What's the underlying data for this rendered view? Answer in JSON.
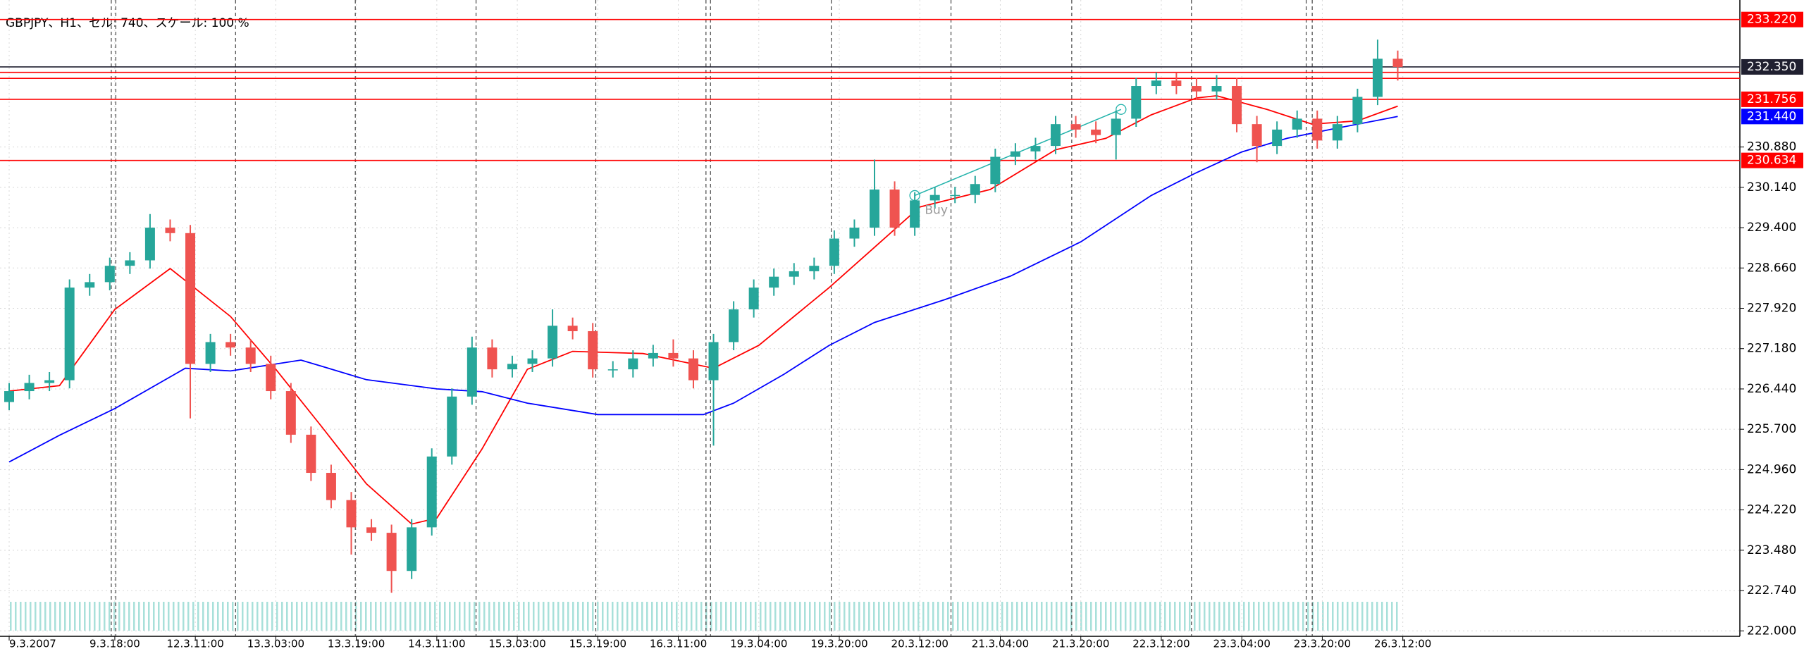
{
  "chart_data": {
    "type": "candlestick",
    "title": "GBPJPY、H1、セル: 740、スケール: 100 %",
    "x": [
      0,
      4,
      8,
      12,
      16,
      20,
      24,
      28,
      32,
      36,
      40,
      44,
      48,
      52,
      56,
      60,
      64,
      68,
      72,
      76,
      80,
      84,
      88,
      92,
      96,
      100,
      104,
      108,
      112,
      116,
      120,
      124,
      128,
      132,
      136,
      140,
      144,
      148,
      152,
      156,
      160,
      164,
      168,
      172,
      176,
      180,
      184,
      188,
      192,
      196,
      200,
      204,
      208,
      212,
      216,
      220,
      224,
      228,
      232,
      236,
      240,
      244,
      248,
      252,
      256,
      260,
      264,
      268,
      272,
      276
    ],
    "open": [
      226.2,
      226.4,
      226.55,
      226.6,
      228.3,
      228.4,
      228.7,
      228.8,
      229.4,
      229.3,
      226.9,
      227.3,
      227.2,
      226.9,
      226.4,
      225.6,
      224.9,
      224.4,
      223.9,
      223.8,
      223.1,
      223.9,
      225.2,
      226.3,
      227.2,
      226.8,
      226.9,
      227.0,
      227.6,
      227.5,
      226.8,
      226.8,
      227.0,
      227.1,
      227.0,
      226.6,
      227.3,
      227.9,
      228.3,
      228.5,
      228.6,
      228.7,
      229.2,
      229.4,
      230.1,
      229.4,
      229.9,
      230.0,
      230.0,
      230.2,
      230.7,
      230.8,
      230.9,
      231.3,
      231.2,
      231.1,
      231.4,
      232.0,
      232.1,
      232.0,
      231.9,
      232.0,
      231.3,
      230.9,
      231.2,
      231.4,
      231.0,
      231.3,
      231.8,
      232.5
    ],
    "high": [
      226.55,
      226.7,
      226.75,
      228.45,
      228.55,
      228.85,
      228.95,
      229.65,
      229.55,
      229.45,
      227.45,
      227.45,
      227.35,
      227.05,
      226.55,
      225.75,
      225.05,
      224.55,
      224.05,
      223.95,
      224.05,
      225.35,
      226.45,
      227.4,
      227.35,
      227.05,
      227.15,
      227.9,
      227.75,
      227.65,
      226.95,
      227.15,
      227.25,
      227.35,
      227.15,
      227.45,
      228.05,
      228.45,
      228.65,
      228.75,
      228.85,
      229.35,
      229.55,
      230.65,
      230.25,
      230.05,
      230.15,
      230.15,
      230.35,
      230.85,
      230.95,
      231.05,
      231.45,
      231.45,
      231.35,
      231.55,
      232.15,
      232.25,
      232.25,
      232.15,
      232.2,
      232.15,
      231.45,
      231.35,
      231.55,
      231.55,
      231.45,
      231.95,
      232.85,
      232.65
    ],
    "low": [
      226.05,
      226.25,
      226.4,
      226.45,
      228.15,
      228.25,
      228.55,
      228.65,
      229.15,
      225.9,
      226.75,
      227.05,
      226.75,
      226.25,
      225.45,
      224.75,
      224.25,
      223.4,
      223.65,
      222.7,
      222.95,
      223.75,
      225.05,
      226.15,
      226.65,
      226.65,
      226.75,
      226.85,
      227.35,
      226.65,
      226.65,
      226.65,
      226.85,
      226.85,
      226.45,
      225.4,
      227.15,
      227.75,
      228.15,
      228.35,
      228.45,
      228.55,
      229.05,
      229.25,
      229.25,
      229.25,
      229.75,
      229.85,
      229.85,
      230.05,
      230.55,
      230.65,
      230.75,
      231.05,
      230.95,
      230.65,
      231.25,
      231.85,
      231.85,
      231.75,
      231.75,
      231.15,
      230.6,
      230.75,
      231.05,
      230.85,
      230.85,
      231.15,
      231.65,
      232.1
    ],
    "close": [
      226.4,
      226.55,
      226.6,
      228.3,
      228.4,
      228.7,
      228.8,
      229.4,
      229.3,
      226.9,
      227.3,
      227.2,
      226.9,
      226.4,
      225.6,
      224.9,
      224.4,
      223.9,
      223.8,
      223.1,
      223.9,
      225.2,
      226.3,
      227.2,
      226.8,
      226.9,
      227.0,
      227.6,
      227.5,
      226.8,
      226.8,
      227.0,
      227.1,
      227.0,
      226.6,
      227.3,
      227.9,
      228.3,
      228.5,
      228.6,
      228.7,
      229.2,
      229.4,
      230.1,
      229.4,
      229.9,
      230.0,
      230.0,
      230.2,
      230.7,
      230.8,
      230.9,
      231.3,
      231.2,
      231.1,
      231.4,
      232.0,
      232.1,
      232.0,
      231.9,
      232.0,
      231.3,
      230.9,
      231.2,
      231.4,
      231.0,
      231.3,
      231.8,
      232.5,
      232.35
    ],
    "up_color": "#26a69a",
    "down_color": "#ef5350",
    "overlays": [
      {
        "color": "#ff0000",
        "x": [
          0,
          10,
          21,
          32,
          44,
          53,
          62,
          71,
          80,
          85,
          94,
          103,
          112,
          126,
          140,
          149,
          163,
          172,
          181,
          195,
          208,
          218,
          227,
          236,
          240,
          250,
          259,
          268,
          276
        ],
        "values": [
          226.4,
          226.5,
          227.9,
          228.65,
          227.77,
          226.8,
          225.76,
          224.7,
          223.96,
          224.07,
          225.34,
          226.8,
          227.13,
          227.09,
          226.82,
          227.24,
          228.3,
          229.04,
          229.78,
          230.1,
          230.83,
          231.04,
          231.47,
          231.78,
          231.82,
          231.57,
          231.3,
          231.36,
          231.63
        ]
      },
      {
        "color": "#0000ff",
        "x": [
          0,
          10,
          21,
          35,
          44,
          58,
          62,
          71,
          85,
          94,
          103,
          117,
          126,
          138,
          144,
          154,
          163,
          172,
          186,
          199,
          213,
          227,
          236,
          245,
          254,
          263,
          276
        ],
        "values": [
          225.1,
          225.59,
          226.08,
          226.82,
          226.77,
          226.97,
          226.86,
          226.61,
          226.44,
          226.39,
          226.18,
          225.97,
          225.97,
          225.97,
          226.18,
          226.71,
          227.24,
          227.66,
          228.08,
          228.51,
          229.14,
          229.99,
          230.41,
          230.79,
          231.04,
          231.21,
          231.44
        ]
      }
    ],
    "trendline": {
      "color": "#20b2aa",
      "x": [
        180,
        221
      ],
      "values": [
        229.99,
        231.57
      ]
    },
    "annotations": [
      {
        "text": "Buy",
        "x": 182,
        "y": 229.72
      }
    ],
    "hlines": [
      {
        "value": 233.22,
        "color": "#ff0000",
        "label": "233.220"
      },
      {
        "value": 232.35,
        "color": "#202030",
        "label": "232.350"
      },
      {
        "value": 232.25,
        "color": "#ff0000"
      },
      {
        "value": 232.14,
        "color": "#ff0000"
      },
      {
        "value": 231.756,
        "color": "#ff0000",
        "label": "231.756"
      },
      {
        "value": 230.634,
        "color": "#ff0000",
        "label": "230.634"
      }
    ],
    "price_labels": [
      {
        "value": 231.44,
        "color": "#0000ff",
        "label": "231.440"
      }
    ],
    "vlines": [
      20.3,
      21.2,
      45,
      68.8,
      92.8,
      116.6,
      138.5,
      139.4,
      163.4,
      187.2,
      211.2,
      235,
      257.8,
      259
    ],
    "xlim": [
      0,
      344
    ],
    "ylim": [
      221.9,
      233.41
    ],
    "xticks": [
      {
        "value": 0,
        "label": "9.3.2007"
      },
      {
        "value": 21,
        "label": "9.3.18:00"
      },
      {
        "value": 37,
        "label": "12.3.11:00"
      },
      {
        "value": 53,
        "label": "13.3.03:00"
      },
      {
        "value": 69,
        "label": "13.3.19:00"
      },
      {
        "value": 85,
        "label": "14.3.11:00"
      },
      {
        "value": 101,
        "label": "15.3.03:00"
      },
      {
        "value": 117,
        "label": "15.3.19:00"
      },
      {
        "value": 133,
        "label": "16.3.11:00"
      },
      {
        "value": 149,
        "label": "19.3.04:00"
      },
      {
        "value": 165,
        "label": "19.3.20:00"
      },
      {
        "value": 181,
        "label": "20.3.12:00"
      },
      {
        "value": 197,
        "label": "21.3.04:00"
      },
      {
        "value": 213,
        "label": "21.3.20:00"
      },
      {
        "value": 229,
        "label": "22.3.12:00"
      },
      {
        "value": 245,
        "label": "23.3.04:00"
      },
      {
        "value": 261,
        "label": "23.3.20:00"
      },
      {
        "value": 277,
        "label": "26.3.12:00"
      }
    ],
    "yticks": [
      {
        "value": 222,
        "label": "222.000"
      },
      {
        "value": 222.74,
        "label": "222.740"
      },
      {
        "value": 223.48,
        "label": "223.480"
      },
      {
        "value": 224.22,
        "label": "224.220"
      },
      {
        "value": 224.96,
        "label": "224.960"
      },
      {
        "value": 225.7,
        "label": "225.700"
      },
      {
        "value": 226.44,
        "label": "226.440"
      },
      {
        "value": 227.18,
        "label": "227.180"
      },
      {
        "value": 227.92,
        "label": "227.920"
      },
      {
        "value": 228.66,
        "label": "228.660"
      },
      {
        "value": 229.4,
        "label": "229.400"
      },
      {
        "value": 230.14,
        "label": "230.140"
      },
      {
        "value": 230.88,
        "label": "230.880"
      }
    ],
    "grid": true
  }
}
